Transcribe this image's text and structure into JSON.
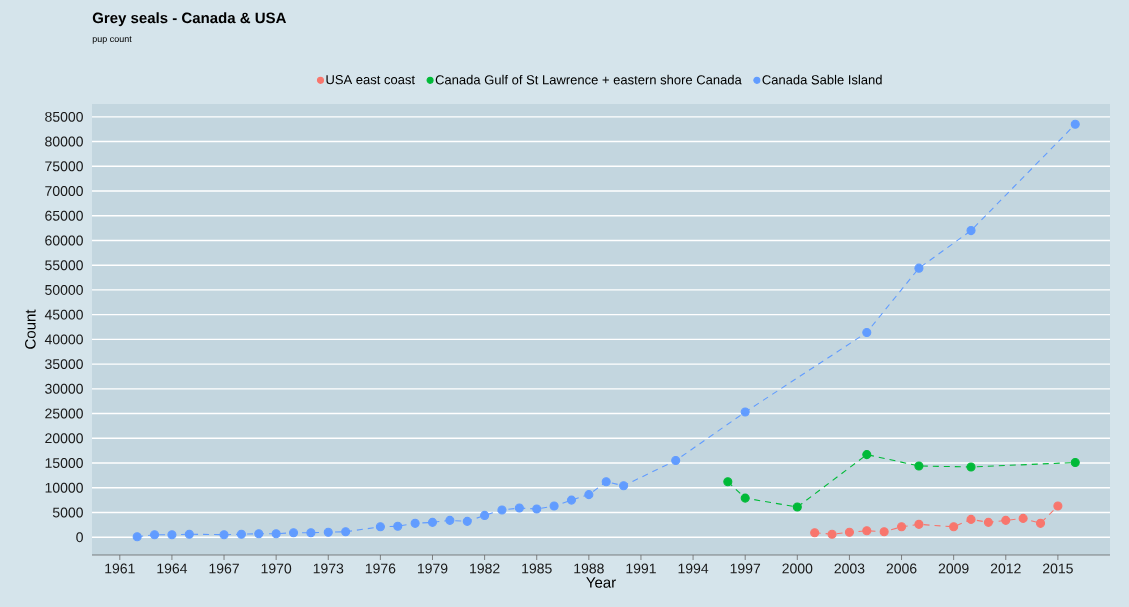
{
  "chart_data": {
    "type": "line",
    "title": "Grey seals - Canada & USA",
    "subtitle": "pup count",
    "xlabel": "Year",
    "ylabel": "Count",
    "series": [
      {
        "name": "USA east coast",
        "color": "#f8766d",
        "x": [
          2001,
          2002,
          2003,
          2004,
          2005,
          2006,
          2007,
          2009,
          2010,
          2011,
          2012,
          2013,
          2014,
          2015
        ],
        "values": [
          900,
          600,
          1000,
          1300,
          1100,
          2100,
          2600,
          2100,
          3600,
          3000,
          3400,
          3800,
          2800,
          6300
        ]
      },
      {
        "name": "Canada Gulf of St Lawrence + eastern shore Canada",
        "color": "#00ba38",
        "x": [
          1996,
          1997,
          2000,
          2004,
          2007,
          2010,
          2016
        ],
        "values": [
          11200,
          7900,
          6100,
          16700,
          14400,
          14200,
          15100
        ]
      },
      {
        "name": "Canada Sable Island",
        "color": "#619cff",
        "x": [
          1962,
          1963,
          1964,
          1965,
          1967,
          1968,
          1969,
          1970,
          1971,
          1972,
          1973,
          1974,
          1976,
          1977,
          1978,
          1979,
          1980,
          1981,
          1982,
          1983,
          1984,
          1985,
          1986,
          1987,
          1988,
          1989,
          1990,
          1993,
          1997,
          2004,
          2007,
          2010,
          2016
        ],
        "values": [
          100,
          500,
          500,
          600,
          500,
          600,
          700,
          700,
          900,
          900,
          1000,
          1100,
          2100,
          2200,
          2800,
          3000,
          3400,
          3200,
          4400,
          5500,
          5900,
          5700,
          6300,
          7500,
          8600,
          11200,
          10400,
          15500,
          25300,
          41400,
          54400,
          62000,
          83500
        ]
      }
    ],
    "xlim": [
      1959.4,
      2018
    ],
    "ylim": [
      -3600,
      87600
    ],
    "xticks": [
      1961,
      1964,
      1967,
      1970,
      1973,
      1976,
      1979,
      1982,
      1985,
      1988,
      1991,
      1994,
      1997,
      2000,
      2003,
      2006,
      2009,
      2012,
      2015
    ],
    "yticks": [
      0,
      5000,
      10000,
      15000,
      20000,
      25000,
      30000,
      35000,
      40000,
      45000,
      50000,
      55000,
      60000,
      65000,
      70000,
      75000,
      80000,
      85000
    ],
    "grid": "y",
    "legend": "top",
    "marker": "circle",
    "line_style": "dashed"
  }
}
